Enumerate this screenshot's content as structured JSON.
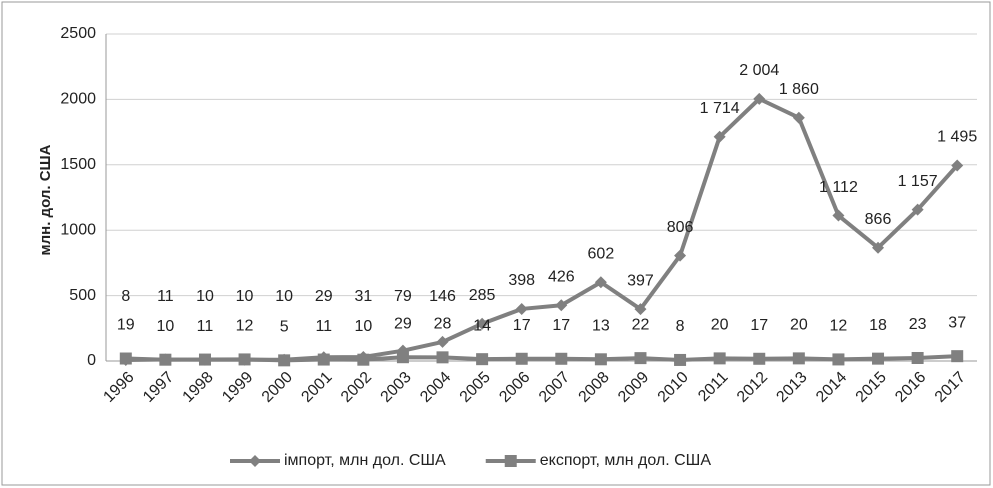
{
  "chart_data": {
    "type": "line",
    "y_label": "млн. дол. США",
    "categories": [
      "1996",
      "1997",
      "1998",
      "1999",
      "2000",
      "2001",
      "2002",
      "2003",
      "2004",
      "2005",
      "2006",
      "2007",
      "2008",
      "2009",
      "2010",
      "2011",
      "2012",
      "2013",
      "2014",
      "2015",
      "2016",
      "2017"
    ],
    "series": [
      {
        "name": "імпорт, млн дол. США",
        "color": "#808080",
        "marker": "diamond",
        "values": [
          8,
          11,
          10,
          10,
          10,
          29,
          31,
          79,
          146,
          285,
          398,
          426,
          602,
          397,
          806,
          1714,
          2004,
          1860,
          1112,
          866,
          1157,
          1495
        ],
        "value_labels": [
          "8",
          "11",
          "10",
          "10",
          "10",
          "29",
          "31",
          "79",
          "146",
          "285",
          "398",
          "426",
          "602",
          "397",
          "806",
          "1 714",
          "2 004",
          "1 860",
          "1 112",
          "866",
          "1 157",
          "1 495"
        ]
      },
      {
        "name": "експорт, млн дол. США",
        "color": "#808080",
        "marker": "square",
        "values": [
          19,
          10,
          11,
          12,
          5,
          11,
          10,
          29,
          28,
          14,
          17,
          17,
          13,
          22,
          8,
          20,
          17,
          20,
          12,
          18,
          23,
          37
        ]
      }
    ],
    "ylim": [
      0,
      2500
    ],
    "yticks": [
      0,
      500,
      1000,
      1500,
      2000,
      2500
    ],
    "grid": true,
    "legend": "bottom"
  }
}
